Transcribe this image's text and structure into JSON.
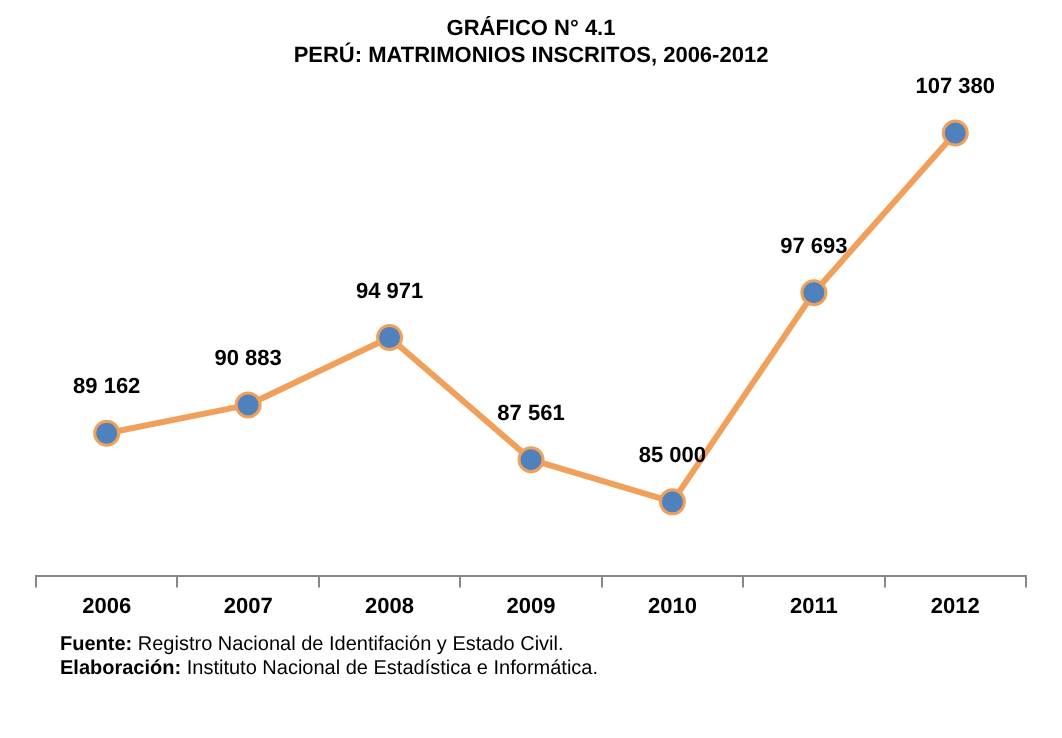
{
  "chart_data": {
    "type": "line",
    "title": "GRÁFICO N° 4.1",
    "subtitle": "PERÚ: MATRIMONIOS INSCRITOS, 2006-2012",
    "categories": [
      "2006",
      "2007",
      "2008",
      "2009",
      "2010",
      "2011",
      "2012"
    ],
    "series": [
      {
        "color": "#f0a05a",
        "values": [
          89162,
          90883,
          94971,
          87561,
          85000,
          97693,
          107380
        ],
        "value_labels": [
          "89 162",
          "90 883",
          "94 971",
          "87 561",
          "85 000",
          "97 693",
          "107 380"
        ]
      }
    ],
    "marker": "circle",
    "line_style": "solid",
    "grid": false,
    "legend": false,
    "annotations": [
      "Fuente: Registro Nacional de Identifación y Estado Civil.",
      "Elaboración: Instituto Nacional de Estadística e Informática."
    ]
  }
}
